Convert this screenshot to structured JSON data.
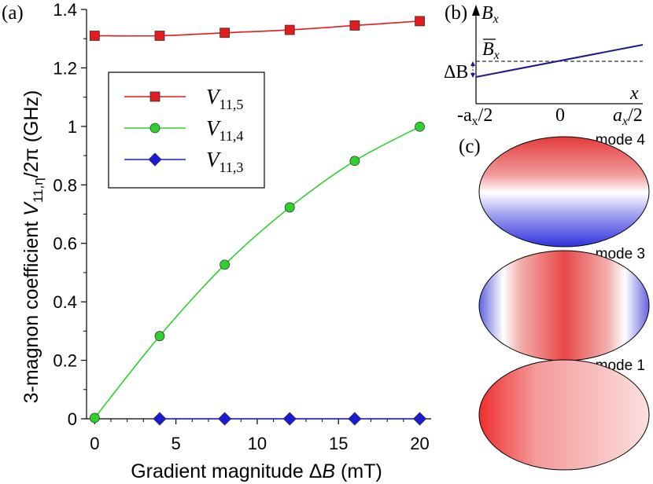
{
  "panels": {
    "a_label": "(a)",
    "b_label": "(b)",
    "c_label": "(c)"
  },
  "chart_data": {
    "type": "line",
    "title": "",
    "xlabel": "Gradient magnitude ΔB (mT)",
    "xlabel_parts": {
      "pre": "Gradient magnitude Δ",
      "var": "B",
      "post": " (mT)"
    },
    "ylabel": "3-magnon coefficient V11,η/2π (GHz)",
    "ylabel_parts": {
      "pre": "3-magnon coefficient ",
      "var": "V",
      "sub": "11,η",
      "post": "/2π (GHz)"
    },
    "xlim": [
      -0.5,
      20.7
    ],
    "ylim": [
      0,
      1.4
    ],
    "x_ticks": [
      0,
      5,
      10,
      15,
      20
    ],
    "x_tick_labels": [
      "0",
      "5",
      "10",
      "15",
      "20"
    ],
    "y_ticks": [
      0,
      0.2,
      0.4,
      0.6,
      0.8,
      1.0,
      1.2,
      1.4
    ],
    "y_tick_labels": [
      "0",
      "0.2",
      "0.4",
      "0.6",
      "0.8",
      "1",
      "1.2",
      "1.4"
    ],
    "legend_position": "upper-left",
    "series": [
      {
        "name": "V11,5",
        "var": "V",
        "sub": "11,5",
        "color": "#e41a1c",
        "marker": "square",
        "x": [
          0,
          4,
          8,
          12,
          16,
          20
        ],
        "values": [
          1.31,
          1.31,
          1.32,
          1.33,
          1.345,
          1.36
        ]
      },
      {
        "name": "V11,4",
        "var": "V",
        "sub": "11,4",
        "color": "#2fd12f",
        "marker": "circle",
        "x": [
          0,
          4,
          8,
          12,
          16,
          20
        ],
        "values": [
          0.003,
          0.283,
          0.527,
          0.723,
          0.882,
          0.999
        ]
      },
      {
        "name": "V11,3",
        "var": "V",
        "sub": "11,3",
        "color": "#1b1bd6",
        "marker": "diamond",
        "x": [
          4,
          8,
          12,
          16,
          20
        ],
        "values": [
          0,
          0,
          0,
          0,
          0
        ]
      }
    ]
  },
  "inset_b": {
    "y_axis_var": "B",
    "y_axis_sub": "x",
    "mean_var": "B",
    "mean_sub": "x",
    "delta_label": "ΔB",
    "x_axis_var": "x",
    "tick_left": "-a",
    "tick_left_sub": "x",
    "tick_left_post": "/2",
    "tick_mid": "0",
    "tick_right": "a",
    "tick_right_sub": "x",
    "tick_right_post": "/2",
    "line_color": "#1a1a8c"
  },
  "modes": [
    {
      "label": "mode 4",
      "color": "#22cc22"
    },
    {
      "label": "mode 3",
      "color": "#2222dd"
    },
    {
      "label": "mode 1",
      "color": "#000000"
    }
  ]
}
